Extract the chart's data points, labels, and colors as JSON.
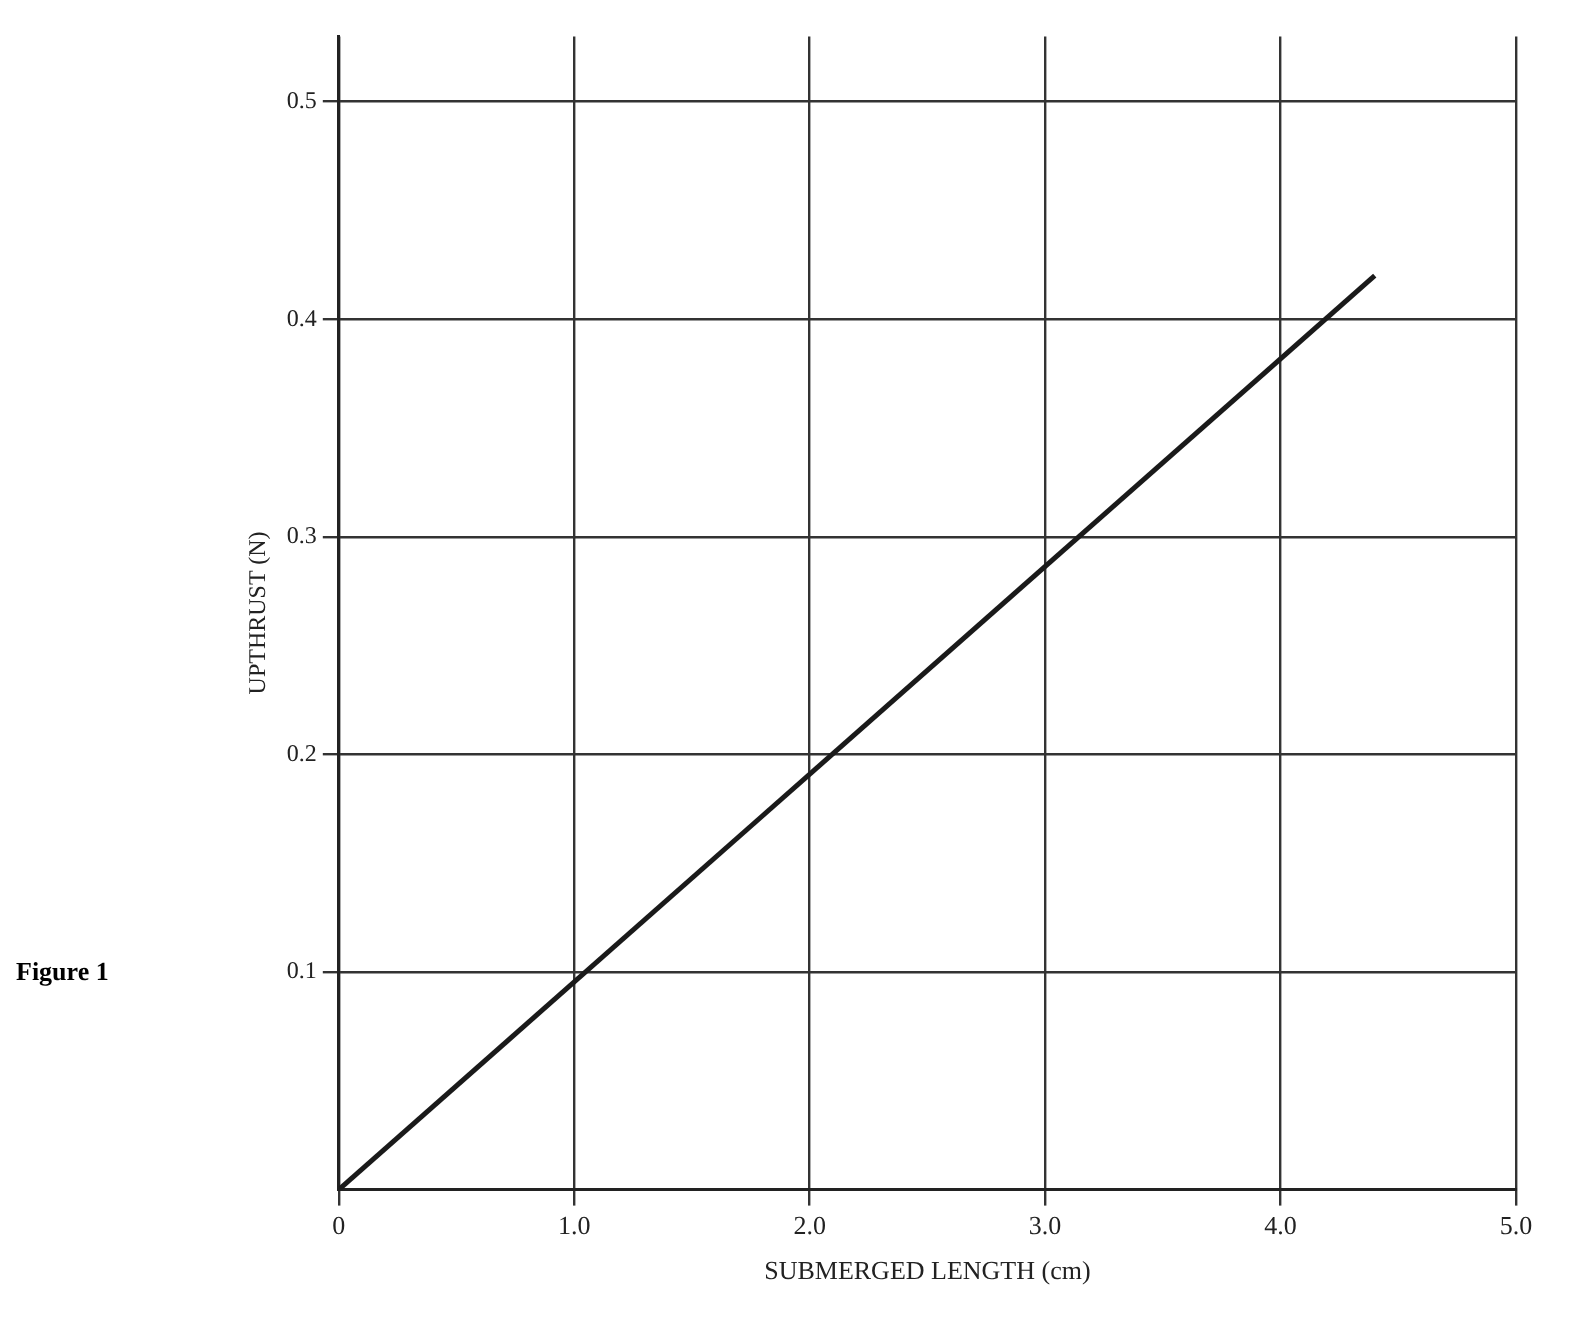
{
  "chart_data": {
    "type": "line",
    "xlabel": "SUBMERGED LENGTH (cm)",
    "ylabel": "UPTHRUST (N)",
    "annotations": [
      "Figure 1"
    ],
    "x": [
      0,
      4.4
    ],
    "series": [
      {
        "color": "#1a1a1a",
        "values": [
          0,
          0.42
        ]
      }
    ],
    "xlim": [
      0,
      5.0
    ],
    "ylim": [
      0,
      0.53
    ],
    "xticks": [
      {
        "value": 0,
        "label": "0"
      },
      {
        "value": 1,
        "label": "1.0"
      },
      {
        "value": 2,
        "label": "2.0"
      },
      {
        "value": 3,
        "label": "3.0"
      },
      {
        "value": 4,
        "label": "4.0"
      },
      {
        "value": 5,
        "label": "5.0"
      }
    ],
    "yticks": [
      0.1,
      0.2,
      0.3,
      0.4,
      0.5
    ],
    "grid": true,
    "legend": false,
    "marker": "none",
    "line_style": "solid"
  }
}
